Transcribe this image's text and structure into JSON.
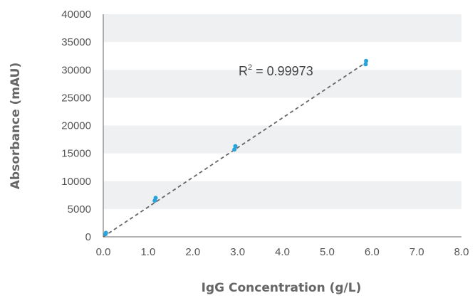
{
  "chart_data": {
    "type": "scatter",
    "xlabel": "IgG Concentration (g/L)",
    "ylabel": "Absorbance (mAU)",
    "xlim": [
      0,
      8
    ],
    "ylim": [
      0,
      40000
    ],
    "x_ticks": [
      "0.0",
      "1.0",
      "2.0",
      "3.0",
      "4.0",
      "5.0",
      "6.0",
      "7.0",
      "8.0"
    ],
    "y_ticks": [
      "0",
      "5000",
      "10000",
      "15000",
      "20000",
      "25000",
      "30000",
      "35000",
      "40000"
    ],
    "series": [
      {
        "points": [
          {
            "x": 0.05,
            "y": 500
          },
          {
            "x": 0.06,
            "y": 700
          },
          {
            "x": 1.15,
            "y": 6500
          },
          {
            "x": 1.17,
            "y": 7000
          },
          {
            "x": 2.93,
            "y": 15700
          },
          {
            "x": 2.95,
            "y": 16300
          },
          {
            "x": 5.86,
            "y": 31000
          },
          {
            "x": 5.87,
            "y": 31600
          }
        ]
      }
    ],
    "trendline": {
      "style": "dashed",
      "x": [
        0,
        5.9
      ],
      "y": [
        0,
        31500
      ]
    },
    "annotation": {
      "base": "R",
      "sup": "2",
      "rest": " = 0.99973"
    },
    "grid": "alternating horizontal bands",
    "legend": "none",
    "colors": {
      "points": "#29a3dc",
      "trendline": "#666666",
      "band": "#eef0f2",
      "axis": "#888888"
    }
  }
}
